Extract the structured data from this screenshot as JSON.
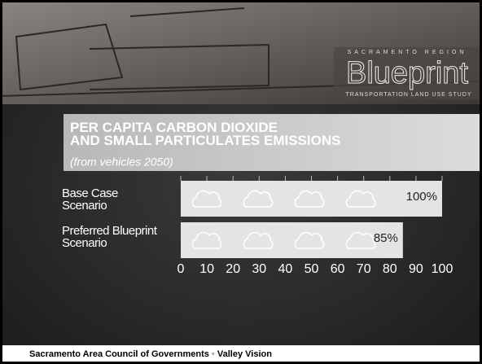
{
  "banner": {
    "region": "SACRAMENTO REGION",
    "brand": "Blueprint",
    "study": "TRANSPORTATION LAND USE STUDY"
  },
  "chart_data": {
    "type": "bar",
    "orientation": "horizontal",
    "title": "PER CAPITA CARBON DIOXIDE AND SMALL PARTICULATES EMISSIONS",
    "subtitle": "(from vehicles 2050)",
    "categories": [
      "Base Case Scenario",
      "Preferred Blueprint Scenario"
    ],
    "values": [
      100,
      85
    ],
    "value_labels": [
      "100%",
      "85%"
    ],
    "color": "#e4e4e4",
    "xlim": [
      0,
      100
    ],
    "xticks": [
      0,
      10,
      20,
      30,
      40,
      50,
      60,
      70,
      80,
      90,
      100
    ]
  },
  "footer": "Sacramento Area Council of Governments ◦ Valley Vision"
}
